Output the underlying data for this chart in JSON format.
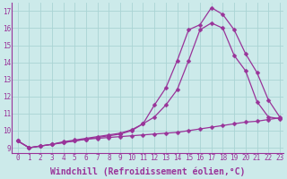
{
  "xlabel": "Windchill (Refroidissement éolien,°C)",
  "ylabel": "",
  "bg_color": "#cceaea",
  "line_color": "#993399",
  "xlim": [
    -0.5,
    23.3
  ],
  "ylim": [
    8.7,
    17.5
  ],
  "xticks": [
    0,
    1,
    2,
    3,
    4,
    5,
    6,
    7,
    8,
    9,
    10,
    11,
    12,
    13,
    14,
    15,
    16,
    17,
    18,
    19,
    20,
    21,
    22,
    23
  ],
  "yticks": [
    9,
    10,
    11,
    12,
    13,
    14,
    15,
    16,
    17
  ],
  "line1_x": [
    0,
    1,
    2,
    3,
    4,
    5,
    6,
    7,
    8,
    9,
    10,
    11,
    12,
    13,
    14,
    15,
    16,
    17,
    18,
    19,
    20,
    21,
    22,
    23
  ],
  "line1_y": [
    9.4,
    9.0,
    9.1,
    9.2,
    9.3,
    9.4,
    9.5,
    9.55,
    9.6,
    9.65,
    9.7,
    9.75,
    9.8,
    9.85,
    9.9,
    10.0,
    10.1,
    10.2,
    10.3,
    10.4,
    10.5,
    10.55,
    10.65,
    10.75
  ],
  "line2_x": [
    0,
    1,
    2,
    3,
    4,
    5,
    6,
    7,
    8,
    9,
    10,
    11,
    12,
    13,
    14,
    15,
    16,
    17,
    18,
    19,
    20,
    21,
    22,
    23
  ],
  "line2_y": [
    9.4,
    9.0,
    9.1,
    9.2,
    9.35,
    9.45,
    9.55,
    9.65,
    9.75,
    9.85,
    10.05,
    10.4,
    10.8,
    11.5,
    12.4,
    14.1,
    15.9,
    16.3,
    16.0,
    14.4,
    13.5,
    11.7,
    10.8,
    10.7
  ],
  "line3_x": [
    0,
    1,
    2,
    3,
    4,
    5,
    6,
    7,
    8,
    9,
    10,
    11,
    12,
    13,
    14,
    15,
    16,
    17,
    18,
    19,
    20,
    21,
    22,
    23
  ],
  "line3_y": [
    9.4,
    9.0,
    9.1,
    9.2,
    9.3,
    9.4,
    9.5,
    9.6,
    9.7,
    9.8,
    10.0,
    10.4,
    11.5,
    12.5,
    14.1,
    15.9,
    16.2,
    17.2,
    16.8,
    15.9,
    14.5,
    13.4,
    11.8,
    10.8
  ],
  "grid_color": "#aad4d4",
  "tick_label_fontsize": 5.5,
  "xlabel_fontsize": 7.0,
  "marker_size": 2.5,
  "linewidth": 0.9
}
